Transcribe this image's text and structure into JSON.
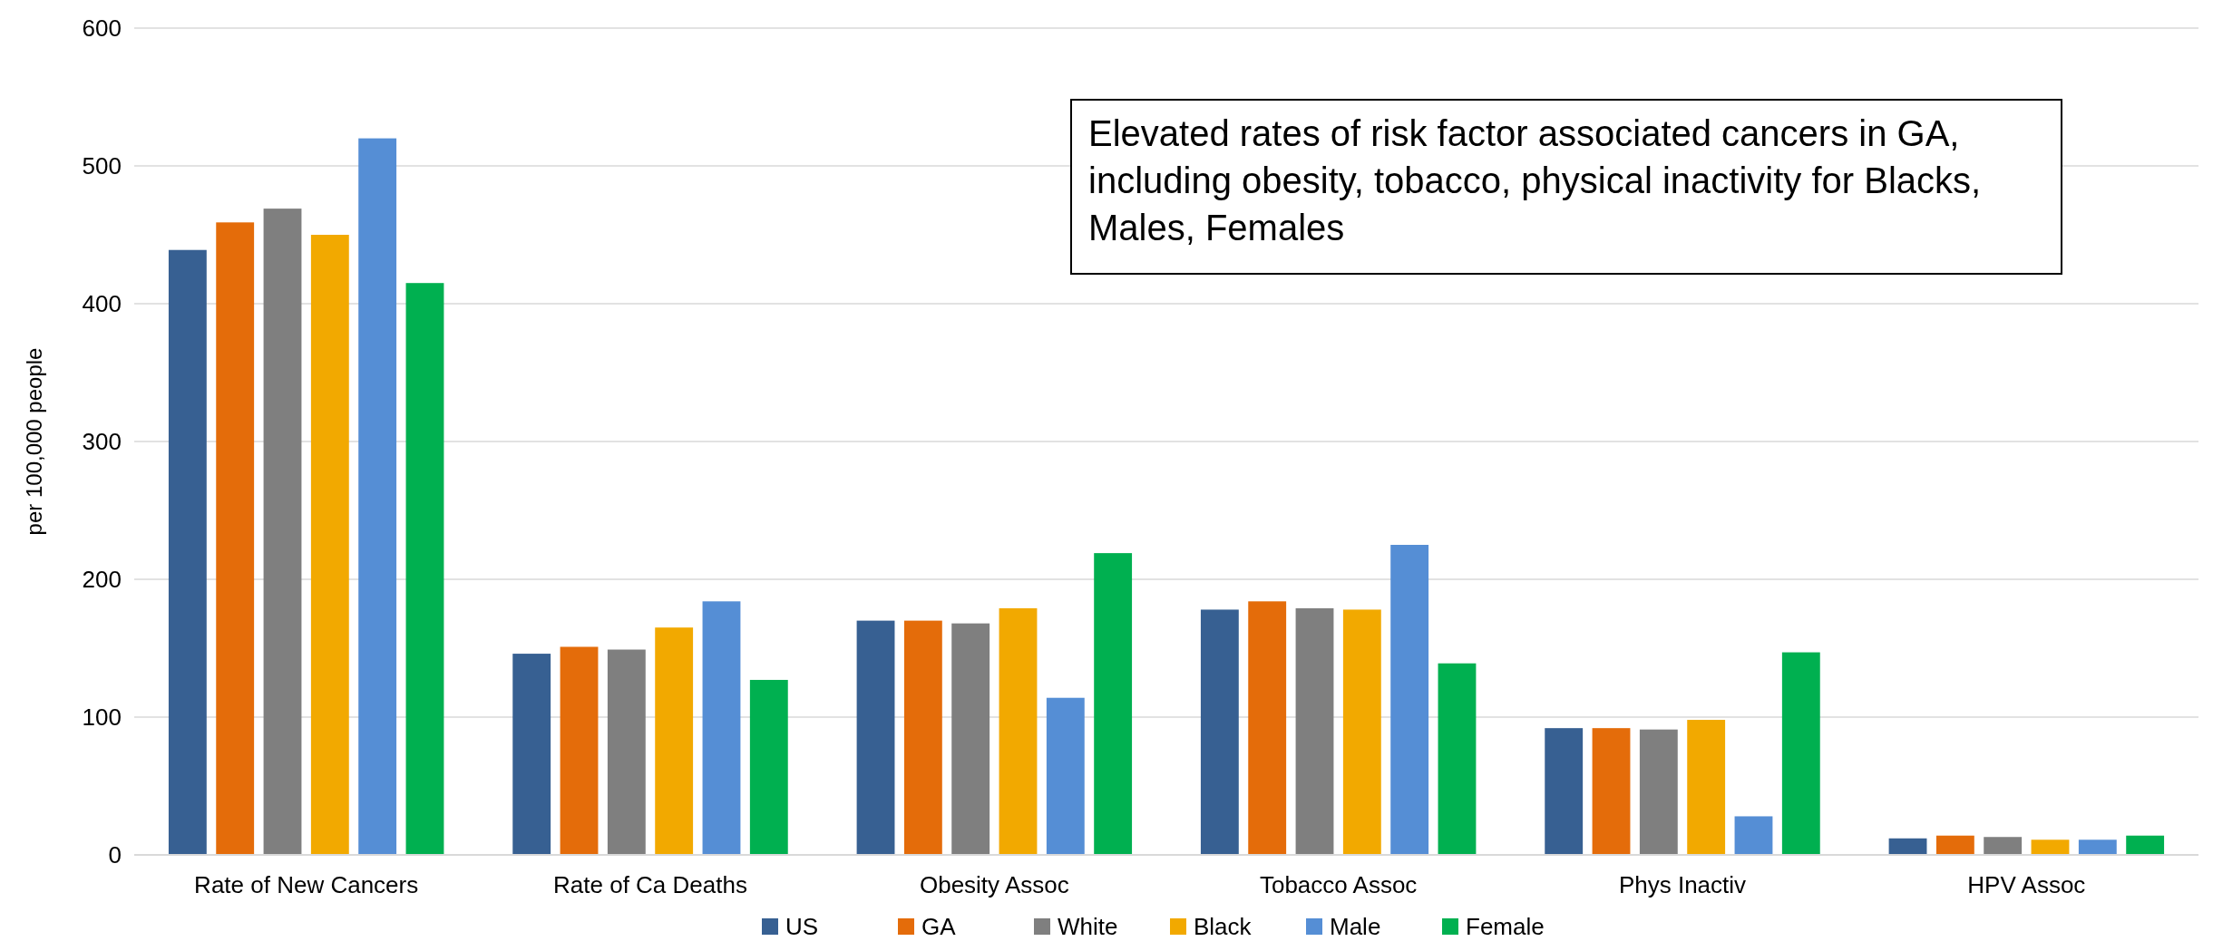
{
  "chart_data": {
    "type": "bar",
    "ylabel": "per 100,000 people",
    "categories": [
      "Rate of New Cancers",
      "Rate of Ca Deaths",
      "Obesity Assoc",
      "Tobacco Assoc",
      "Phys Inactiv",
      "HPV Assoc"
    ],
    "series": [
      {
        "name": "US",
        "color": "#376092",
        "values": [
          439,
          146,
          170,
          178,
          92,
          12
        ]
      },
      {
        "name": "GA",
        "color": "#e46c0a",
        "values": [
          459,
          151,
          170,
          184,
          92,
          14
        ]
      },
      {
        "name": "White",
        "color": "#7f7f7f",
        "values": [
          469,
          149,
          168,
          179,
          91,
          13
        ]
      },
      {
        "name": "Black",
        "color": "#f2a900",
        "values": [
          450,
          165,
          179,
          178,
          98,
          11
        ]
      },
      {
        "name": "Male",
        "color": "#558ed5",
        "values": [
          520,
          184,
          114,
          225,
          28,
          11
        ]
      },
      {
        "name": "Female",
        "color": "#00b050",
        "values": [
          415,
          127,
          219,
          139,
          147,
          14
        ]
      }
    ],
    "ylim": [
      0,
      600
    ],
    "yticks": [
      0,
      100,
      200,
      300,
      400,
      500,
      600
    ],
    "grid": "y",
    "legend": "bottom",
    "annotations": [
      "Elevated rates of risk factor associated cancers in GA, including obesity, tobacco, physical inactivity for Blacks, Males, Females"
    ]
  }
}
